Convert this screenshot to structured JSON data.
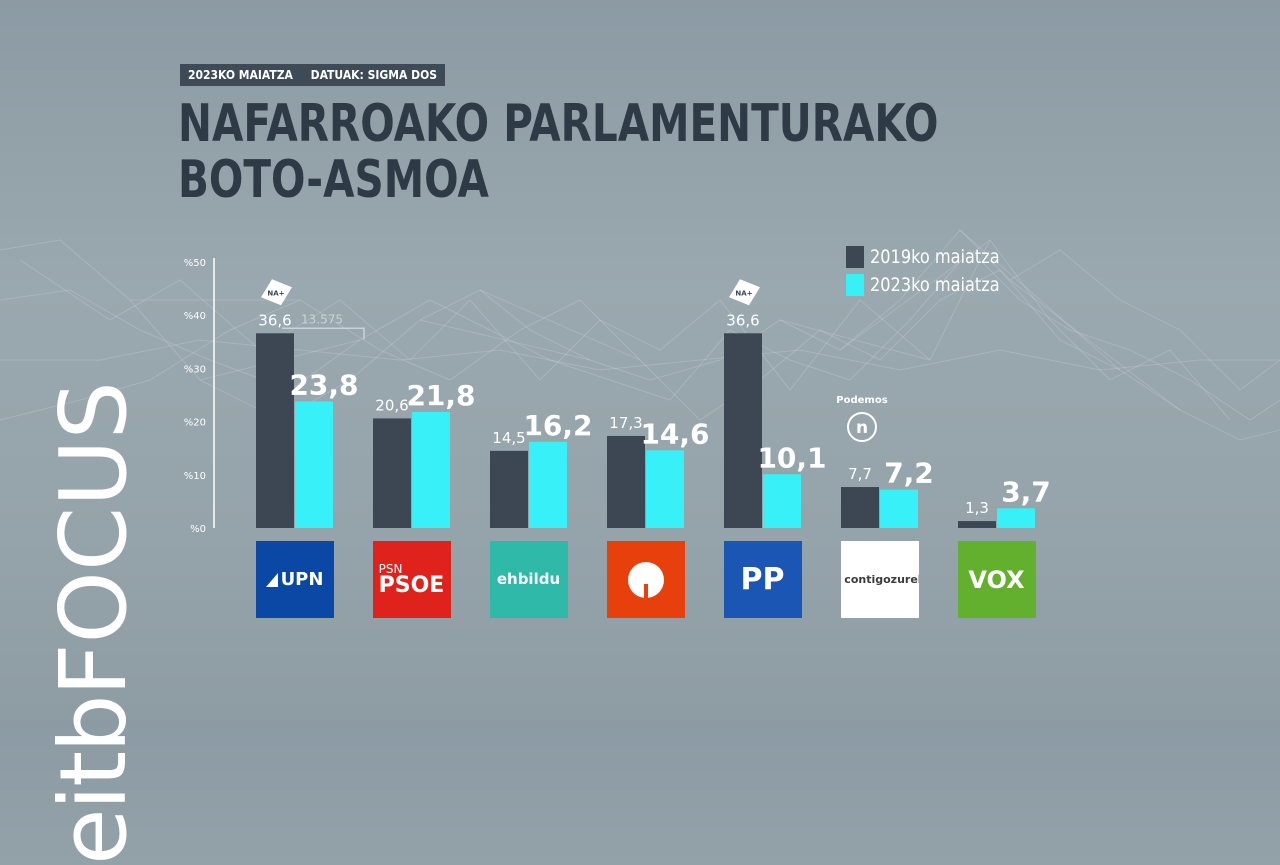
{
  "brand": {
    "eitb": "eitb",
    "focus": "FOCUS"
  },
  "header": {
    "tag_date": "2023KO MAIATZA",
    "tag_source": "DATUAK: SIGMA DOS"
  },
  "title": {
    "line1": "NAFARROAKO PARLAMENTURAKO",
    "line2": "BOTO-ASMOA"
  },
  "colors": {
    "series_2019": "#3c4753",
    "series_2023": "#38f0f7",
    "title": "#2f3a47"
  },
  "chart_data": {
    "type": "bar",
    "title": "NAFARROAKO PARLAMENTURAKO BOTO-ASMOA",
    "categories": [
      "UPN",
      "PSN-PSOE",
      "EH Bildu",
      "Geroa Bai",
      "PP",
      "Contigo Zurekin",
      "Vox"
    ],
    "series": [
      {
        "name": "2019ko maiatza",
        "color": "#3c4753",
        "values": [
          36.6,
          20.6,
          14.5,
          17.3,
          36.6,
          7.7,
          1.3
        ],
        "labels": [
          "36,6",
          "20,6",
          "14,5",
          "17,3",
          "36,6",
          "7,7",
          "1,3"
        ]
      },
      {
        "name": "2023ko maiatza",
        "color": "#38f0f7",
        "values": [
          23.8,
          21.8,
          16.2,
          14.6,
          10.1,
          7.2,
          3.7
        ],
        "labels": [
          "23,8",
          "21,8",
          "16,2",
          "14,6",
          "10,1",
          "7,2",
          "3,7"
        ]
      }
    ],
    "yticks": [
      0,
      10,
      20,
      30,
      40,
      50
    ],
    "ytick_labels": [
      "%0",
      "%10",
      "%20",
      "%30",
      "%40",
      "%50"
    ],
    "ylim": [
      0,
      50
    ],
    "legend_position": "top-right",
    "annotations": {
      "na_plus_badge": "NA+",
      "upn_votes_note": "13.575",
      "podemos_label": "Podemos",
      "podemos_symbol": "n"
    }
  },
  "logos": [
    {
      "name": "UPN",
      "lines": [
        "UPN"
      ],
      "bg": "#0b48a6",
      "fg": "#ffffff"
    },
    {
      "name": "PSN-PSOE",
      "lines": [
        "PSN",
        "PSOE"
      ],
      "bg": "#e0221d",
      "fg": "#ffffff"
    },
    {
      "name": "EH Bildu",
      "lines": [
        "ehbildu"
      ],
      "bg": "#2fb9a8",
      "fg": "#ffffff"
    },
    {
      "name": "Geroa Bai",
      "lines": [],
      "bg": "#e8400c",
      "fg": "#ffffff"
    },
    {
      "name": "PP",
      "lines": [
        "PP"
      ],
      "bg": "#1c56b5",
      "fg": "#ffffff"
    },
    {
      "name": "Contigo Zurekin",
      "lines": [
        "contigo",
        "zurekin"
      ],
      "bg": "#ffffff",
      "fg": "#3b3b3b"
    },
    {
      "name": "Vox",
      "lines": [
        "VOX"
      ],
      "bg": "#63b02e",
      "fg": "#ffffff"
    }
  ]
}
